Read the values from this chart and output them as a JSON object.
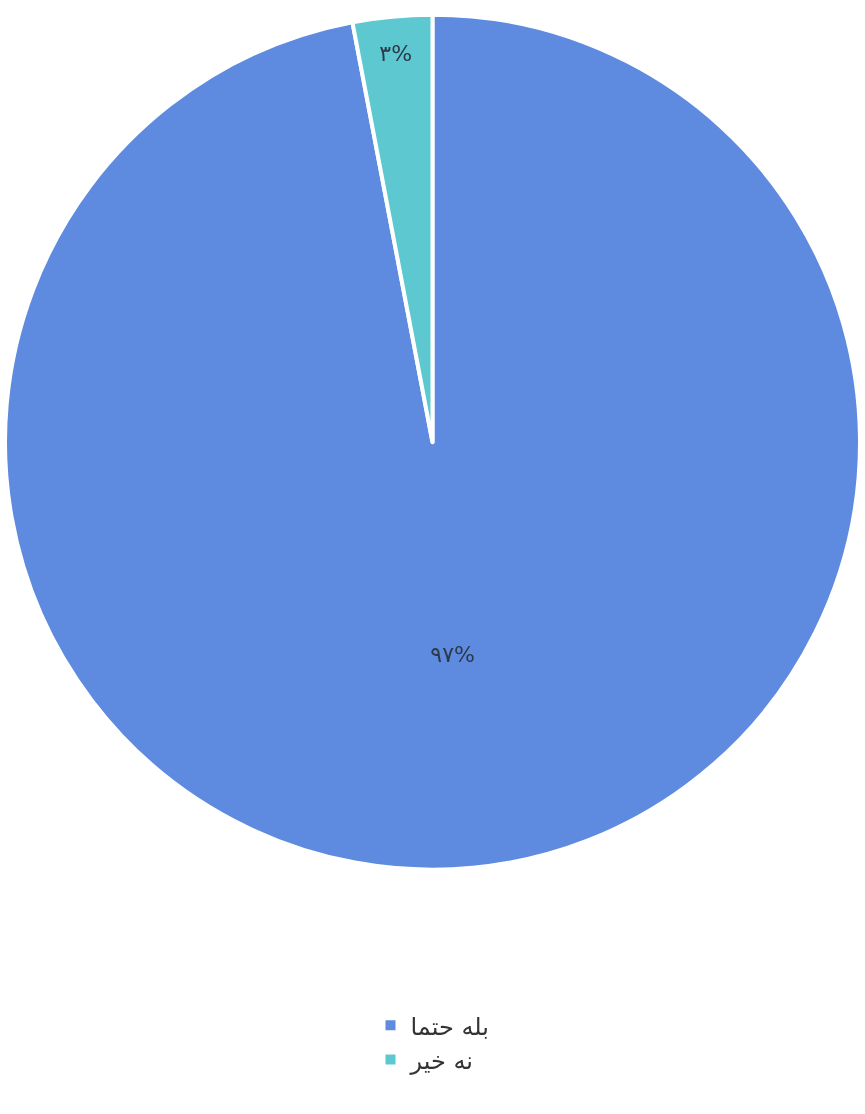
{
  "chart_data": {
    "type": "pie",
    "categories": [
      "بله حتما",
      "نه خیر"
    ],
    "values": [
      97,
      3
    ],
    "colors": [
      "#5e8be0",
      "#5ec8d0"
    ],
    "value_labels": [
      "۹۷%",
      "۳%"
    ],
    "legend": "bottom"
  }
}
